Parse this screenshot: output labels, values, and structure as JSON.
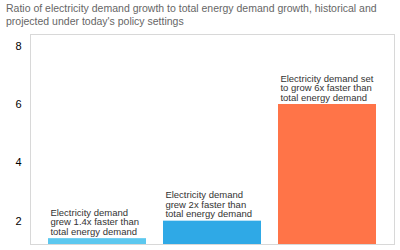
{
  "chart_data": {
    "type": "bar",
    "subtitle": "Ratio of electricity demand growth to total energy demand growth, historical and projected under today's policy settings",
    "categories": [
      null,
      null,
      null
    ],
    "values": [
      1.4,
      2,
      6
    ],
    "colors": [
      "#5cc8ef",
      "#2fa9e6",
      "#ff7448"
    ],
    "annotations": [
      "Electricity demand grew 1.4x faster than total energy demand",
      "Electricity demand grew 2x faster than total energy demand",
      "Electricity demand set to grow 6x faster than total energy demand"
    ],
    "ylim": [
      1.2,
      8.4
    ],
    "yticks": [
      2,
      4,
      6,
      8
    ],
    "grid": false
  }
}
